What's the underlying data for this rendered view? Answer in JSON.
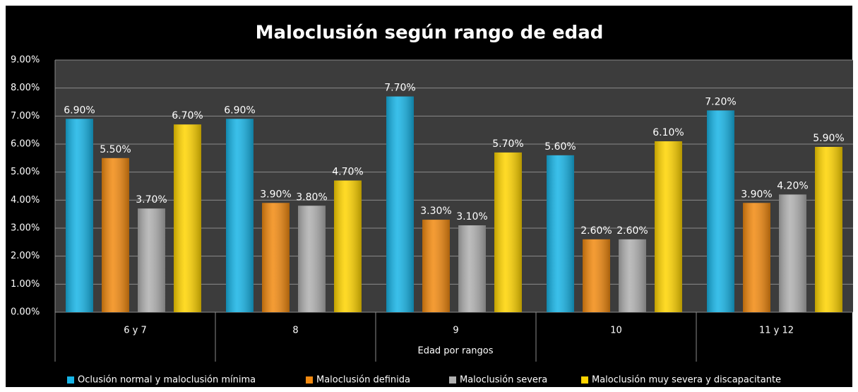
{
  "chart_data": {
    "type": "bar",
    "title": "Maloclusión  según rango de edad",
    "x_label": "Edad por rangos",
    "categories": [
      "6 y 7",
      "8",
      "9",
      "10",
      "11 y 12"
    ],
    "series": [
      {
        "name": "Oclusión normal y maloclusión mínima",
        "color": "#17b4e6",
        "values": [
          6.9,
          6.9,
          7.7,
          5.6,
          7.2
        ],
        "value_labels": [
          "6.90%",
          "6.90%",
          "7.70%",
          "5.60%",
          "7.20%"
        ]
      },
      {
        "name": "Maloclusión definida",
        "color": "#f28a10",
        "values": [
          5.5,
          3.9,
          3.3,
          2.6,
          3.9
        ],
        "value_labels": [
          "5.50%",
          "3.90%",
          "3.30%",
          "2.60%",
          "3.90%"
        ]
      },
      {
        "name": "Maloclusión severa",
        "color": "#b0b0b0",
        "values": [
          3.7,
          3.8,
          3.1,
          2.6,
          4.2
        ],
        "value_labels": [
          "3.70%",
          "3.80%",
          "3.10%",
          "2.60%",
          "4.20%"
        ]
      },
      {
        "name": "Maloclusión muy severa y discapacitante",
        "color": "#ffd400",
        "values": [
          6.7,
          4.7,
          5.7,
          6.1,
          5.9
        ],
        "value_labels": [
          "6.70%",
          "4.70%",
          "5.70%",
          "6.10%",
          "5.90%"
        ]
      }
    ],
    "ylim": [
      0,
      9
    ],
    "yticks": [
      {
        "value": 0,
        "label": "0.00%"
      },
      {
        "value": 1,
        "label": "1.00%"
      },
      {
        "value": 2,
        "label": "2.00%"
      },
      {
        "value": 3,
        "label": "3.00%"
      },
      {
        "value": 4,
        "label": "4.00%"
      },
      {
        "value": 5,
        "label": "5.00%"
      },
      {
        "value": 6,
        "label": "6.00%"
      },
      {
        "value": 7,
        "label": "7.00%"
      },
      {
        "value": 8,
        "label": "8.00%"
      },
      {
        "value": 9,
        "label": "9.00%"
      }
    ],
    "grid": true,
    "legend": "bottom"
  }
}
